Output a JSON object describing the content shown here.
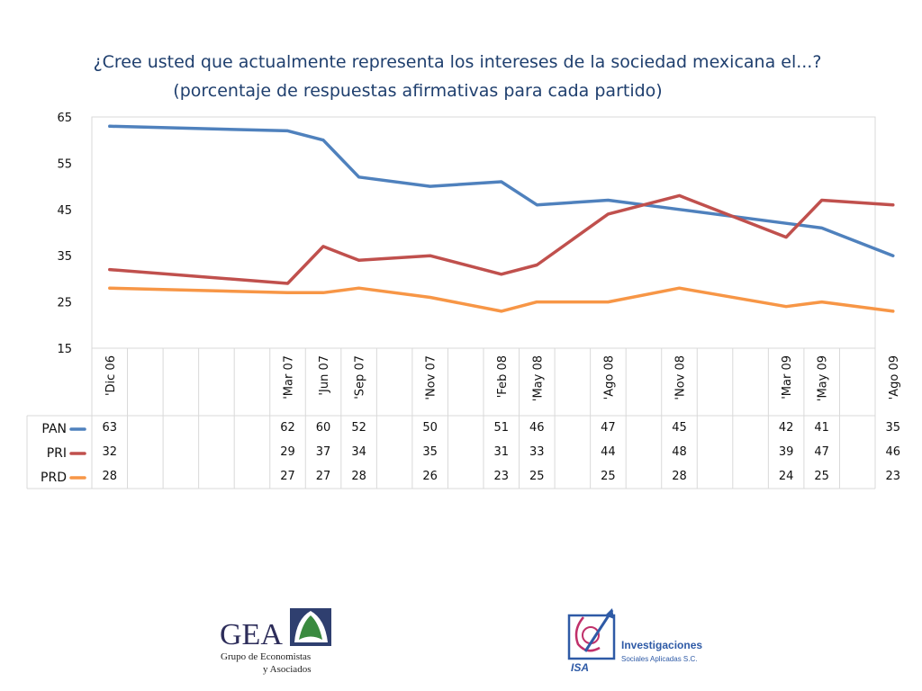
{
  "title": "¿Cree usted que actualmente representa los intereses de la sociedad mexicana el...?",
  "subtitle": "(porcentaje de respuestas afirmativas para cada partido)",
  "chart_data": {
    "type": "line",
    "x_positions": [
      0,
      5,
      6,
      7,
      9,
      11,
      12,
      14,
      16,
      19,
      20,
      22
    ],
    "tick_labels": [
      "'Dic 06",
      "'Mar 07",
      "'Jun 07",
      "'Sep 07",
      "'Nov 07",
      "'Feb 08",
      "'May 08",
      "'Ago 08",
      "'Nov 08",
      "'Mar 09",
      "'May 09",
      "'Ago 09"
    ],
    "ylim": [
      15,
      65
    ],
    "yticks": [
      15,
      25,
      35,
      45,
      55,
      65
    ],
    "grid": false,
    "legend": "table-left",
    "series": [
      {
        "name": "PAN",
        "color": "#4f81bd",
        "values": [
          63,
          62,
          60,
          52,
          50,
          51,
          46,
          47,
          45,
          42,
          41,
          35
        ]
      },
      {
        "name": "PRI",
        "color": "#c0504d",
        "values": [
          32,
          29,
          37,
          34,
          35,
          31,
          33,
          44,
          48,
          39,
          47,
          46
        ]
      },
      {
        "name": "PRD",
        "color": "#f79646",
        "values": [
          28,
          27,
          27,
          28,
          26,
          23,
          25,
          25,
          28,
          24,
          25,
          23
        ]
      }
    ]
  },
  "logos": {
    "gea": {
      "name": "GEA",
      "line1": "Grupo de Economistas",
      "line2": "y Asociados"
    },
    "isa": {
      "name": "ISA",
      "line1": "Investigaciones",
      "line2": "Sociales Aplicadas S.C."
    }
  }
}
